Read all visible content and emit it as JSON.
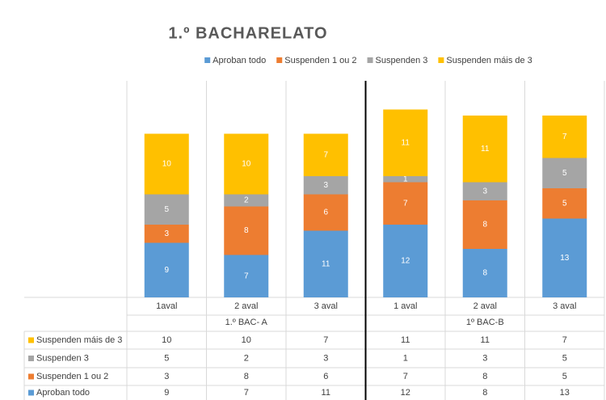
{
  "chart_data": {
    "type": "bar",
    "stacked": true,
    "title": "1.º BACHARELATO",
    "categories": [
      "1aval",
      "2 aval",
      "3 aval",
      "1 aval",
      "2 aval",
      "3 aval"
    ],
    "group_labels": [
      "1.º BAC- A",
      "1º BAC-B"
    ],
    "series": [
      {
        "name": "Aproban todo",
        "color": "#5b9bd5",
        "values": [
          9,
          7,
          11,
          12,
          8,
          13
        ]
      },
      {
        "name": "Suspenden 1 ou 2",
        "color": "#ed7d31",
        "values": [
          3,
          8,
          6,
          7,
          8,
          5
        ]
      },
      {
        "name": "Suspenden 3",
        "color": "#a5a5a5",
        "values": [
          5,
          2,
          3,
          1,
          3,
          5
        ]
      },
      {
        "name": "Suspenden máis de 3",
        "color": "#ffc000",
        "values": [
          10,
          10,
          7,
          11,
          11,
          7
        ]
      }
    ],
    "data_labels": true,
    "data_table": true,
    "legend": "top"
  }
}
